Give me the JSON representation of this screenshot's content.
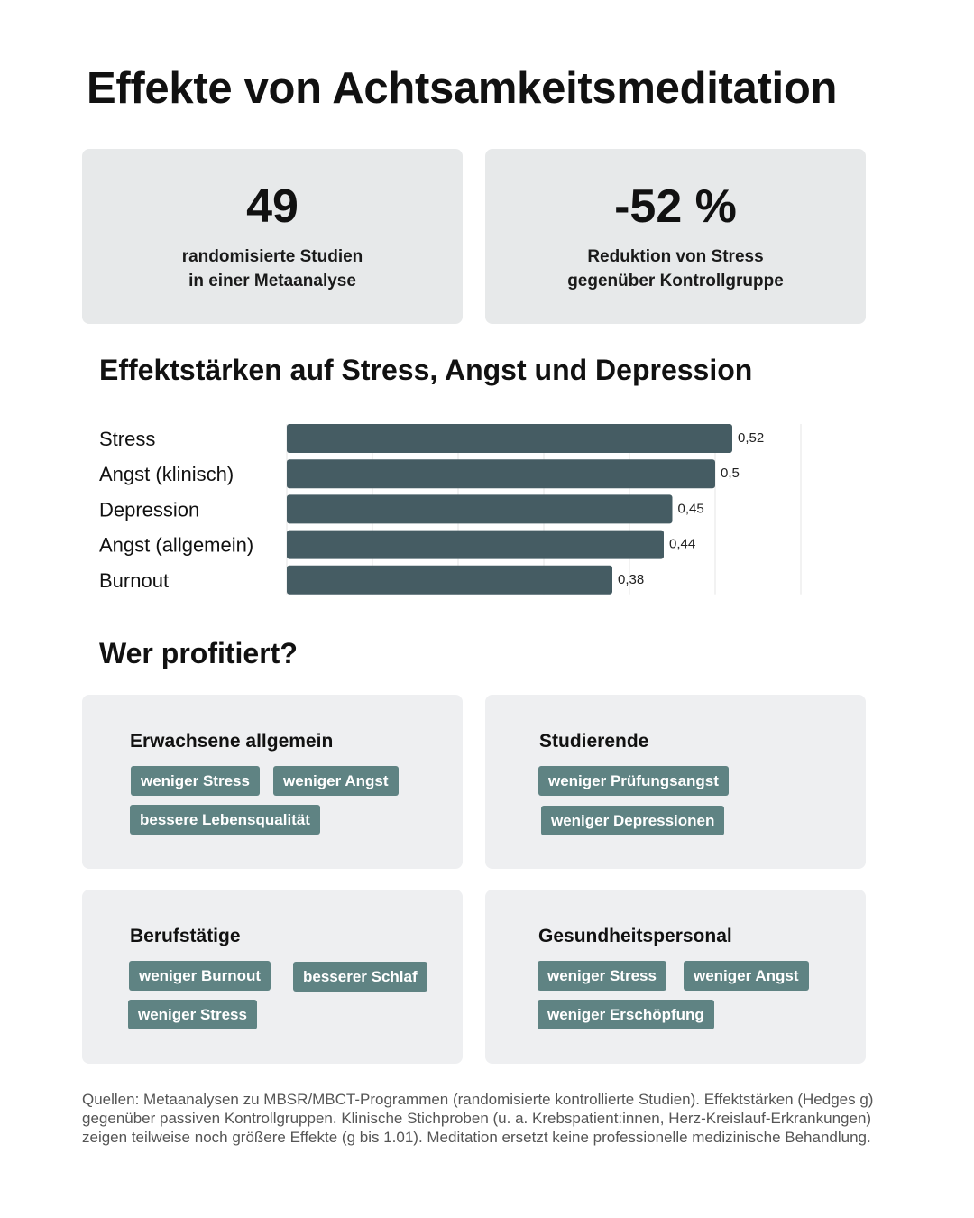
{
  "title": "Effekte von Achtsamkeitsmeditation",
  "stats": [
    {
      "value": "49",
      "label_lines": [
        "randomisierte Studien",
        "in einer Metaanalyse"
      ]
    },
    {
      "value": "-52 %",
      "label_lines": [
        "Reduktion von Stress",
        "gegenüber Kontrollgruppe"
      ]
    }
  ],
  "chart_data": {
    "type": "bar",
    "orientation": "horizontal",
    "title": "Effektstärken auf Stress, Angst und Depression",
    "categories": [
      "Stress",
      "Angst (klinisch)",
      "Depression",
      "Angst (allgemein)",
      "Burnout"
    ],
    "values": [
      0.52,
      0.5,
      0.45,
      0.44,
      0.38
    ],
    "value_labels": [
      "0,52",
      "0,5",
      "0,45",
      "0,44",
      "0,38"
    ],
    "xlim": [
      0,
      0.6
    ],
    "grid": true,
    "bar_color": "#455c63",
    "grid_color": "#e6e6e6"
  },
  "benefits": {
    "title": "Wer profitiert?",
    "groups": [
      {
        "name": "Erwachsene allgemein",
        "tags": [
          "weniger Stress",
          "weniger Angst",
          "bessere Lebensqualität"
        ]
      },
      {
        "name": "Studierende",
        "tags": [
          "weniger Prüfungsangst",
          "weniger Depressionen"
        ]
      },
      {
        "name": "Berufstätige",
        "tags": [
          "weniger Burnout",
          "besserer Schlaf",
          "weniger Stress"
        ]
      },
      {
        "name": "Gesundheitspersonal",
        "tags": [
          "weniger Stress",
          "weniger Angst",
          "weniger Erschöpfung"
        ]
      }
    ]
  },
  "sources": "Quellen: Metaanalysen zu MBSR/MBCT-Programmen (randomisierte kontrollierte Studien). Effektstärken (Hedges g) gegenüber passiven Kontrollgruppen. Klinische Stichproben (u. a. Krebspatient:innen, Herz-Kreislauf-Erkrankungen) zeigen teilweise noch größere Effekte (g bis 1.01). Meditation ersetzt keine professionelle medizinische Behandlung.",
  "colors": {
    "card_bg": "#e7e9ea",
    "tag_bg": "#5f8383",
    "tag_text": "#ffffff"
  }
}
